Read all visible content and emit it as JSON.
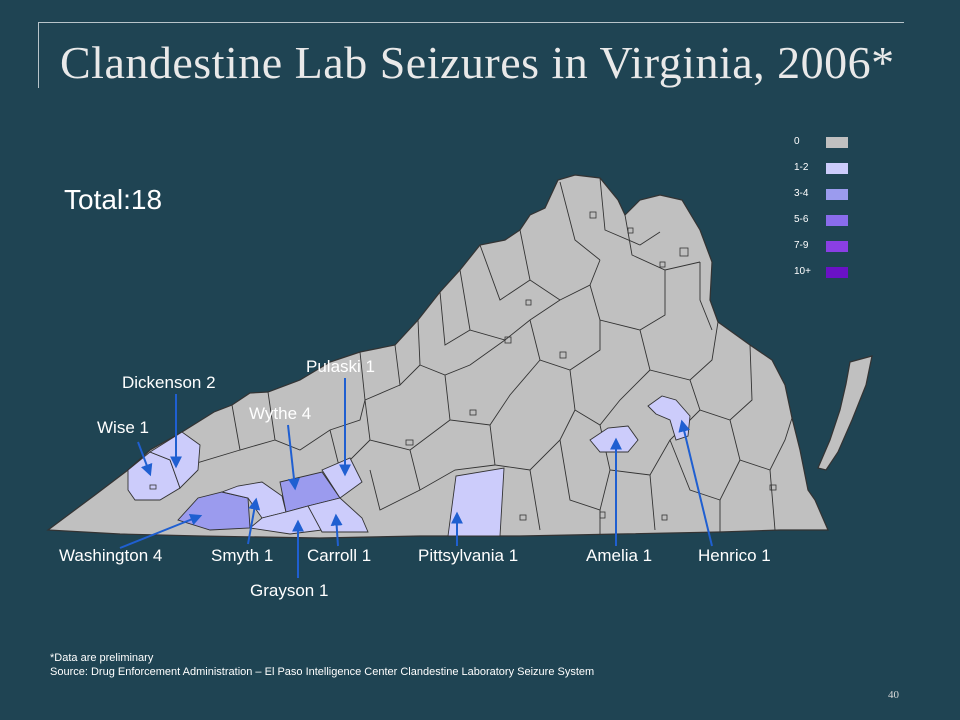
{
  "title": "Clandestine Lab Seizures in Virginia, 2006*",
  "total": "Total:18",
  "legend": {
    "items": [
      {
        "label": "0",
        "color": "#c0c0c0"
      },
      {
        "label": "1-2",
        "color": "#ccccfb"
      },
      {
        "label": "3-4",
        "color": "#9b9bee"
      },
      {
        "label": "5-6",
        "color": "#8a6cec"
      },
      {
        "label": "7-9",
        "color": "#8a3fe4"
      },
      {
        "label": "10+",
        "color": "#6a11c6"
      }
    ]
  },
  "colors": {
    "background": "#1f4453",
    "county_default": "#c0c0c0",
    "county_border": "#333333",
    "arrow": "#1f5fd1"
  },
  "counties": [
    {
      "id": "wise",
      "label": "Wise 1"
    },
    {
      "id": "dickenson",
      "label": "Dickenson 2"
    },
    {
      "id": "wythe",
      "label": "Wythe 4"
    },
    {
      "id": "pulaski",
      "label": "Pulaski 1"
    },
    {
      "id": "washington",
      "label": "Washington 4"
    },
    {
      "id": "smyth",
      "label": "Smyth 1"
    },
    {
      "id": "carroll",
      "label": "Carroll 1"
    },
    {
      "id": "pittsylvania",
      "label": "Pittsylvania 1"
    },
    {
      "id": "amelia",
      "label": "Amelia 1"
    },
    {
      "id": "henrico",
      "label": "Henrico 1"
    },
    {
      "id": "grayson",
      "label": "Grayson 1"
    }
  ],
  "footnote": "*Data are preliminary",
  "source": "Source:  Drug Enforcement Administration – El Paso Intelligence Center  Clandestine Laboratory Seizure System",
  "page_number": "40"
}
